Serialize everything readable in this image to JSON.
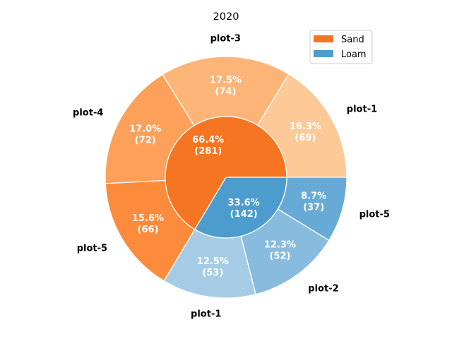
{
  "chart_data": {
    "type": "pie",
    "subtype": "nested-donut",
    "title": "2020",
    "legend": {
      "placement": "top-right",
      "entries": [
        {
          "name": "Sand",
          "color": "#f57522"
        },
        {
          "name": "Loam",
          "color": "#4d9cce"
        }
      ]
    },
    "inner": [
      {
        "name": "Sand",
        "value": 281,
        "pct_label": "66.4%",
        "value_label": "(281)",
        "color": "#f57522"
      },
      {
        "name": "Loam",
        "value": 142,
        "pct_label": "33.6%",
        "value_label": "(142)",
        "color": "#4d9cce"
      }
    ],
    "outer": [
      {
        "group": "Sand",
        "label": "plot-1",
        "value": 69,
        "pct_label": "16.3%",
        "value_label": "(69)",
        "color": "#fdc997"
      },
      {
        "group": "Sand",
        "label": "plot-3",
        "value": 74,
        "pct_label": "17.5%",
        "value_label": "(74)",
        "color": "#fdb577"
      },
      {
        "group": "Sand",
        "label": "plot-4",
        "value": 72,
        "pct_label": "17.0%",
        "value_label": "(72)",
        "color": "#fda05a"
      },
      {
        "group": "Sand",
        "label": "plot-5",
        "value": 66,
        "pct_label": "15.6%",
        "value_label": "(66)",
        "color": "#fd8b3c"
      },
      {
        "group": "Loam",
        "label": "plot-1",
        "value": 53,
        "pct_label": "12.5%",
        "value_label": "(53)",
        "color": "#a6cce5"
      },
      {
        "group": "Loam",
        "label": "plot-2",
        "value": 52,
        "pct_label": "12.3%",
        "value_label": "(52)",
        "color": "#87bcdf"
      },
      {
        "group": "Loam",
        "label": "plot-5",
        "value": 37,
        "pct_label": "8.7%",
        "value_label": "(37)",
        "color": "#68aad6"
      }
    ]
  }
}
